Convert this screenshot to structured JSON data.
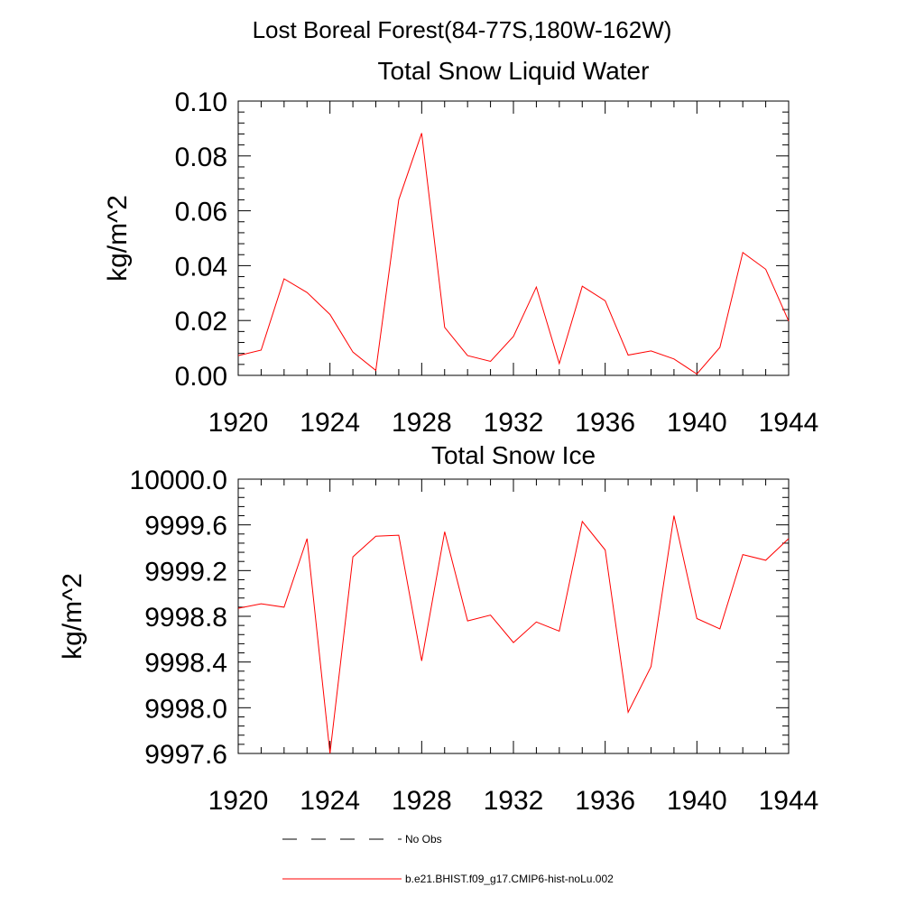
{
  "figure_title": "Lost Boreal Forest(84-77S,180W-162W)",
  "legend": [
    {
      "label": "No Obs",
      "style": "dashed",
      "color": "#000000"
    },
    {
      "label": "b.e21.BHIST.f09_g17.CMIP6-hist-noLu.002",
      "style": "solid",
      "color": "#ff0000"
    }
  ],
  "colors": {
    "series": "#ff0000",
    "axes": "#000000",
    "background": "#ffffff"
  },
  "chart_data": [
    {
      "type": "line",
      "title": "Total Snow Liquid Water",
      "xlabel": "",
      "ylabel": "kg/m^2",
      "xlim": [
        1920,
        1944
      ],
      "ylim": [
        0.0,
        0.1
      ],
      "xticks": [
        1920,
        1924,
        1928,
        1932,
        1936,
        1940,
        1944
      ],
      "yticks": [
        0.0,
        0.02,
        0.04,
        0.06,
        0.08,
        0.1
      ],
      "ytick_labels": [
        "0.00",
        "0.02",
        "0.04",
        "0.06",
        "0.08",
        "0.10"
      ],
      "grid": false,
      "series": [
        {
          "name": "b.e21.BHIST.f09_g17.CMIP6-hist-noLu.002",
          "color": "#ff0000",
          "x": [
            1920,
            1921,
            1922,
            1923,
            1924,
            1925,
            1926,
            1927,
            1928,
            1929,
            1930,
            1931,
            1932,
            1933,
            1934,
            1935,
            1936,
            1937,
            1938,
            1939,
            1940,
            1941,
            1942,
            1943,
            1944
          ],
          "y": [
            0.0072,
            0.0092,
            0.0352,
            0.0302,
            0.0222,
            0.0085,
            0.0018,
            0.064,
            0.0883,
            0.0175,
            0.0072,
            0.0051,
            0.0142,
            0.0322,
            0.0043,
            0.0325,
            0.0272,
            0.0074,
            0.0089,
            0.006,
            0.0005,
            0.0102,
            0.0448,
            0.0387,
            0.0198
          ]
        }
      ]
    },
    {
      "type": "line",
      "title": "Total Snow Ice",
      "xlabel": "",
      "ylabel": "kg/m^2",
      "xlim": [
        1920,
        1944
      ],
      "ylim": [
        9997.6,
        10000.0
      ],
      "xticks": [
        1920,
        1924,
        1928,
        1932,
        1936,
        1940,
        1944
      ],
      "yticks": [
        9997.6,
        9998.0,
        9998.4,
        9998.8,
        9999.2,
        9999.6,
        10000.0
      ],
      "ytick_labels": [
        "9997.6",
        "9998.0",
        "9998.4",
        "9998.8",
        "9999.2",
        "9999.6",
        "10000.0"
      ],
      "grid": false,
      "series": [
        {
          "name": "b.e21.BHIST.f09_g17.CMIP6-hist-noLu.002",
          "color": "#ff0000",
          "x": [
            1920,
            1921,
            1922,
            1923,
            1924,
            1925,
            1926,
            1927,
            1928,
            1929,
            1930,
            1931,
            1932,
            1933,
            1934,
            1935,
            1936,
            1937,
            1938,
            1939,
            1940,
            1941,
            1942,
            1943,
            1944
          ],
          "y": [
            9998.87,
            9998.91,
            9998.88,
            9999.48,
            9997.6,
            9999.32,
            9999.5,
            9999.51,
            9998.41,
            9999.54,
            9998.76,
            9998.81,
            9998.57,
            9998.75,
            9998.67,
            9999.63,
            9999.38,
            9997.96,
            9998.36,
            9999.68,
            9998.78,
            9998.69,
            9999.34,
            9999.29,
            9999.48
          ]
        }
      ]
    }
  ]
}
